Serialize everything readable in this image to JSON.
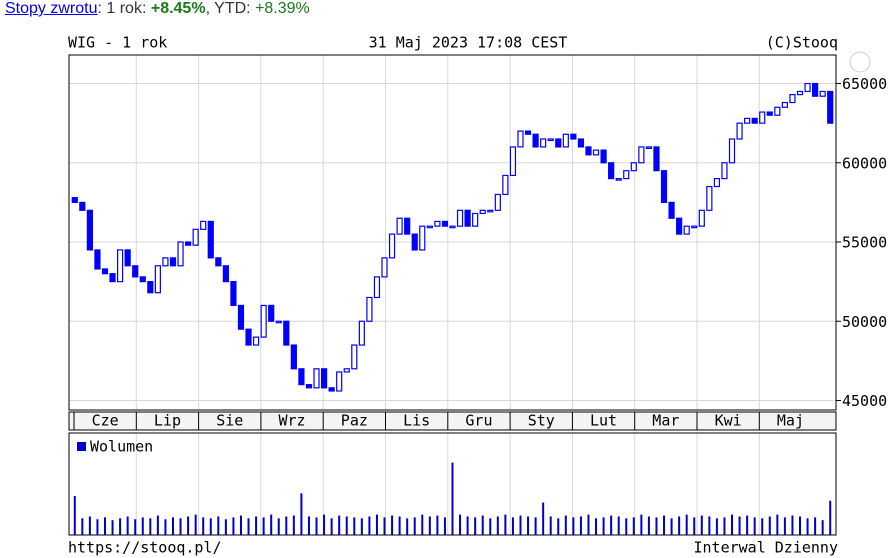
{
  "header": {
    "link": "Stopy zwrotu",
    "one_year_label": ": 1 rok: ",
    "one_year_value": "+8.45%",
    "ytd_label": ", YTD: ",
    "ytd_value": "+8.39%"
  },
  "chart_data": {
    "type": "candlestick",
    "title": "WIG - 1 rok",
    "timestamp": "31 Maj 2023 17:08 CEST",
    "copyright": "(C)Stooq",
    "months": [
      "Cze",
      "Lip",
      "Sie",
      "Wrz",
      "Paz",
      "Lis",
      "Gru",
      "Sty",
      "Lut",
      "Mar",
      "Kwi",
      "Maj"
    ],
    "open": [
      57800,
      57500,
      57000,
      54500,
      53300,
      53000,
      52500,
      54500,
      53500,
      52800,
      52500,
      51800,
      53500,
      54000,
      53500,
      55000,
      54800,
      55800,
      56300,
      54000,
      53500,
      52500,
      51000,
      49500,
      48500,
      49000,
      51000,
      50000,
      50000,
      48500,
      47000,
      46000,
      45800,
      47000,
      45800,
      45600,
      46800,
      47000,
      48500,
      50000,
      51500,
      52800,
      54000,
      55500,
      56500,
      55500,
      54500,
      56000,
      56000,
      56300,
      56000,
      56000,
      57000,
      56000,
      56800,
      57000,
      57000,
      58000,
      59200,
      61000,
      62000,
      61800,
      61000,
      61500,
      61500,
      61000,
      61800,
      61500,
      61000,
      60500,
      60800,
      60000,
      59000,
      59000,
      59500,
      60000,
      61000,
      61000,
      59500,
      57500,
      56500,
      55500,
      56000,
      56000,
      57000,
      58500,
      59000,
      60000,
      61500,
      62500,
      62800,
      62500,
      63200,
      63000,
      63500,
      63800,
      64300,
      64500,
      65000,
      64200,
      64500
    ],
    "close": [
      57500,
      57000,
      54500,
      53300,
      53000,
      52500,
      54500,
      53500,
      52800,
      52500,
      51800,
      53500,
      54000,
      53500,
      55000,
      54800,
      55800,
      56300,
      54000,
      53500,
      52500,
      51000,
      49500,
      48500,
      49000,
      51000,
      50000,
      50000,
      48500,
      47000,
      46000,
      45800,
      47000,
      45800,
      45600,
      46800,
      47000,
      48500,
      50000,
      51500,
      52800,
      54000,
      55500,
      56500,
      55500,
      54500,
      56000,
      56000,
      56300,
      56000,
      56000,
      57000,
      56000,
      56800,
      57000,
      57000,
      58000,
      59200,
      61000,
      62000,
      61800,
      61000,
      61500,
      61500,
      61000,
      61800,
      61500,
      61000,
      60500,
      60800,
      60000,
      59000,
      59000,
      59500,
      60000,
      61000,
      61000,
      59500,
      57500,
      56500,
      55500,
      56000,
      56000,
      57000,
      58500,
      59000,
      60000,
      61500,
      62500,
      62800,
      62500,
      63200,
      63000,
      63500,
      63800,
      64300,
      64500,
      65000,
      64200,
      64500,
      62500
    ],
    "color": "#0000ff",
    "ylim": [
      44400,
      66800
    ],
    "yticks": [
      45000,
      50000,
      55000,
      60000,
      65000
    ],
    "grid": true,
    "volume": {
      "name": "Wolumen",
      "color": "#0000cc",
      "ylim": [
        0,
        110
      ],
      "values": [
        42,
        18,
        20,
        17,
        19,
        16,
        18,
        20,
        17,
        19,
        18,
        21,
        17,
        19,
        18,
        20,
        22,
        19,
        18,
        20,
        17,
        19,
        21,
        18,
        20,
        19,
        22,
        18,
        20,
        21,
        45,
        20,
        19,
        22,
        18,
        21,
        20,
        19,
        18,
        20,
        22,
        19,
        21,
        20,
        18,
        19,
        22,
        20,
        21,
        19,
        78,
        22,
        20,
        19,
        21,
        18,
        20,
        22,
        19,
        21,
        20,
        19,
        35,
        20,
        18,
        21,
        19,
        20,
        22,
        18,
        19,
        21,
        20,
        18,
        19,
        22,
        20,
        19,
        21,
        18,
        20,
        22,
        19,
        21,
        20,
        18,
        19,
        22,
        20,
        21,
        19,
        18,
        20,
        22,
        19,
        21,
        20,
        18,
        19,
        16,
        37
      ]
    },
    "footer_left": "https://stooq.pl/",
    "footer_right": "Interwal Dzienny"
  }
}
